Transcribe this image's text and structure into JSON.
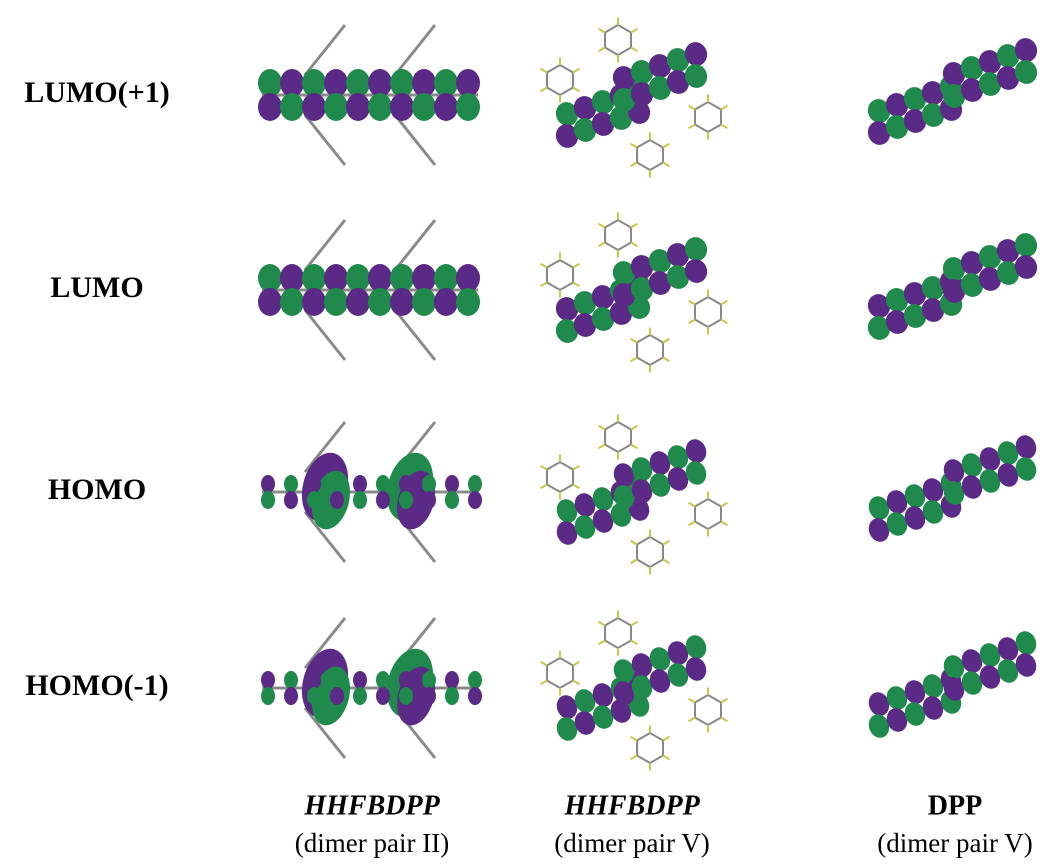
{
  "rows": [
    {
      "label": "LUMO(+1)"
    },
    {
      "label": "LUMO"
    },
    {
      "label": "HOMO"
    },
    {
      "label": "HOMO(-1)"
    }
  ],
  "columns": [
    {
      "name": "HHFBDPP",
      "note": "(dimer pair II)"
    },
    {
      "name": "HHFBDPP",
      "note": "(dimer pair V)"
    },
    {
      "name": "DPP",
      "note": "(dimer pair V)"
    }
  ]
}
